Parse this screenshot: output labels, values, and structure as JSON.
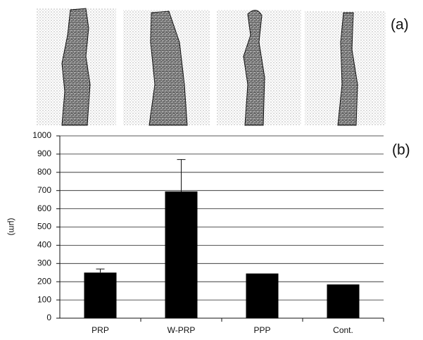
{
  "chart_data": {
    "type": "bar",
    "annotations": [
      "(a)",
      "(b)"
    ],
    "y_label": "(μm)",
    "categories": [
      "PRP",
      "W-PRP",
      "PPP",
      "Cont."
    ],
    "values": [
      250,
      695,
      245,
      185
    ],
    "errors": [
      20,
      175,
      null,
      null
    ],
    "color": "#000000",
    "ylim": [
      0,
      1000
    ],
    "yticks": [
      0,
      100,
      200,
      300,
      400,
      500,
      600,
      700,
      800,
      900,
      1000
    ],
    "grid": true
  }
}
